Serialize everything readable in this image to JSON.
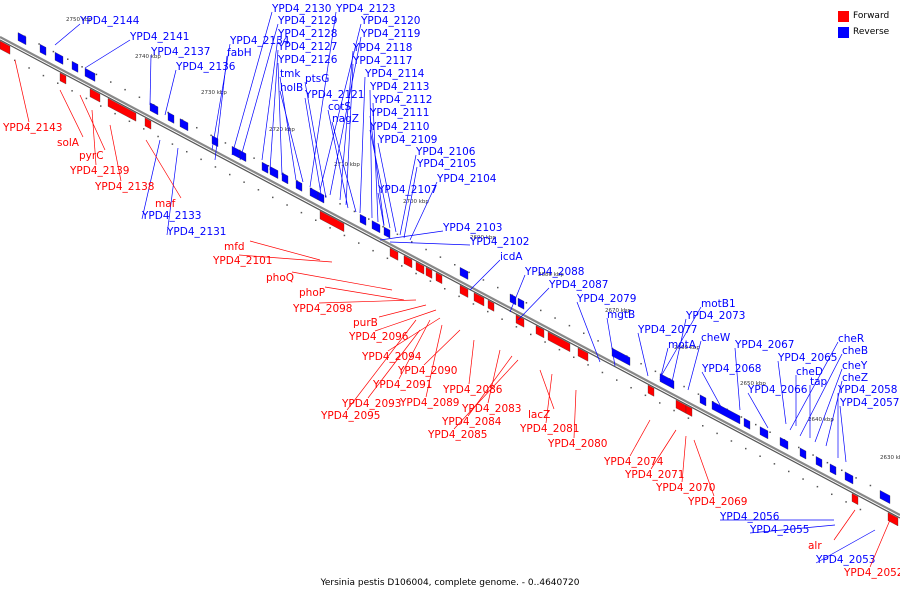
{
  "legend": [
    {
      "label": "Forward",
      "color": "#ff0000"
    },
    {
      "label": "Reverse",
      "color": "#0000ff"
    }
  ],
  "caption": "Yersinia pestis D106004, complete genome. - 0..4640720",
  "colors": {
    "forward": "#ff0000",
    "reverse": "#0000ff",
    "axis": "#888888"
  },
  "scale_ticks": [
    "2750 kbp",
    "2740 kbp",
    "2730 kbp",
    "2720 kbp",
    "2710 kbp",
    "2700 kbp",
    "2690 kbp",
    "2680 kbp",
    "2670 kbp",
    "2660 kbp",
    "2650 kbp",
    "2640 kbp",
    "2630 kbp"
  ],
  "forward_labels": [
    "YPD4_2143",
    "solA",
    "pyrC",
    "YPD4_2139",
    "YPD4_2138",
    "maf",
    "mfd",
    "YPD4_2101",
    "phoQ",
    "phoP",
    "YPD4_2098",
    "purB",
    "YPD4_2096",
    "YPD4_2094",
    "YPD4_2090",
    "YPD4_2091",
    "YPD4_2089",
    "YPD4_2093",
    "YPD4_2095",
    "YPD4_2086",
    "YPD4_2083",
    "YPD4_2084",
    "YPD4_2085",
    "lacZ",
    "YPD4_2081",
    "YPD4_2080",
    "YPD4_2074",
    "YPD4_2071",
    "YPD4_2070",
    "YPD4_2069",
    "alr",
    "YPD4_2052"
  ],
  "reverse_labels": [
    "YPD4_2144",
    "YPD4_2141",
    "YPD4_2137",
    "YPD4_2136",
    "YPD4_2134",
    "fabH",
    "YPD4_2130",
    "YPD4_2129",
    "YPD4_2128",
    "YPD4_2127",
    "YPD4_2126",
    "tmk",
    "holB",
    "YPD4_2123",
    "YPD4_2120",
    "YPD4_2119",
    "YPD4_2118",
    "YPD4_2117",
    "ptsG",
    "YPD4_2114",
    "YPD4_2113",
    "YPD4_2121",
    "cotS",
    "YPD4_2112",
    "nagZ",
    "YPD4_2111",
    "YPD4_2110",
    "YPD4_2109",
    "YPD4_2106",
    "YPD4_2105",
    "YPD4_2104",
    "YPD4_2107",
    "YPD4_2133",
    "YPD4_2131",
    "YPD4_2103",
    "YPD4_2102",
    "icdA",
    "YPD4_2088",
    "YPD4_2087",
    "YPD4_2079",
    "mgtB",
    "motB1",
    "YPD4_2073",
    "YPD4_2077",
    "cheW",
    "motA",
    "YPD4_2067",
    "YPD4_2065",
    "YPD4_2068",
    "cheD",
    "YPD4_2066",
    "tap",
    "cheR",
    "cheB",
    "cheY",
    "cheZ",
    "YPD4_2058",
    "YPD4_2057",
    "YPD4_2056",
    "YPD4_2055",
    "YPD4_2053"
  ]
}
